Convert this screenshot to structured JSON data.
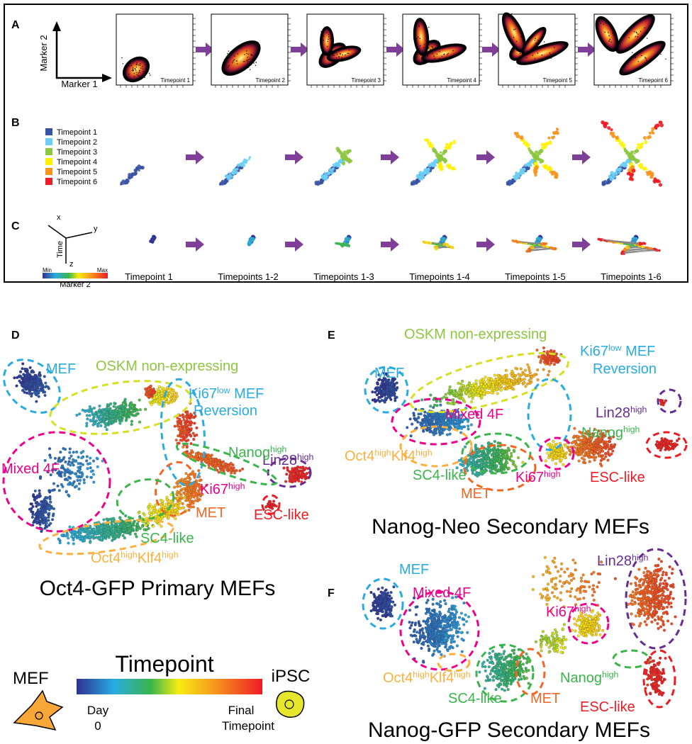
{
  "panel_a": {
    "letter": "A",
    "axis_y": "Marker 2",
    "axis_x": "Marker 1",
    "plots": [
      "Timepoint 1",
      "Timepoint 2",
      "Timepoint 3",
      "Timepoint 4",
      "Timepoint 5",
      "Timepoint 6"
    ]
  },
  "panel_b": {
    "letter": "B",
    "legend": [
      {
        "label": "Timepoint 1",
        "color": "#3953a4"
      },
      {
        "label": "Timepoint 2",
        "color": "#6dcff6"
      },
      {
        "label": "Timepoint 3",
        "color": "#8dc63f"
      },
      {
        "label": "Timepoint 4",
        "color": "#fff200"
      },
      {
        "label": "Timepoint 5",
        "color": "#f7941d"
      },
      {
        "label": "Timepoint 6",
        "color": "#ed1c24"
      }
    ]
  },
  "panel_c": {
    "letter": "C",
    "axes": [
      "x",
      "y",
      "Time",
      "z"
    ],
    "colorbar": {
      "min": "Min",
      "max": "Max",
      "label": "Marker 2"
    },
    "timepoints": [
      "Timepoint 1",
      "Timepoints 1-2",
      "Timepoints 1-3",
      "Timepoints 1-4",
      "Timepoints 1-5",
      "Timepoints 1-6"
    ]
  },
  "panel_d": {
    "letter": "D",
    "title": "Oct4-GFP Primary MEFs",
    "labels": [
      {
        "color": "#29abe2",
        "parts": [
          {
            "text": "MEF"
          }
        ]
      },
      {
        "color": "#8dc63f",
        "parts": [
          {
            "text": "OSKM non-expressing"
          }
        ]
      },
      {
        "color": "#29abe2",
        "parts": [
          {
            "text": "Ki67"
          },
          {
            "text": "low",
            "sup": true
          },
          {
            "text": " MEF"
          }
        ]
      },
      {
        "color": "#29abe2",
        "parts": [
          {
            "text": "Reversion"
          }
        ]
      },
      {
        "color": "#662d91",
        "parts": [
          {
            "text": "Lin28"
          },
          {
            "text": "high",
            "sup": true
          }
        ]
      },
      {
        "color": "#ec008c",
        "parts": [
          {
            "text": "Mixed 4F"
          }
        ]
      },
      {
        "color": "#39b54a",
        "parts": [
          {
            "text": "Nanog"
          },
          {
            "text": "high",
            "sup": true
          }
        ]
      },
      {
        "color": "#ec008c",
        "parts": [
          {
            "text": "Ki67"
          },
          {
            "text": "high",
            "sup": true
          }
        ]
      },
      {
        "color": "#f26522",
        "parts": [
          {
            "text": "MET"
          }
        ]
      },
      {
        "color": "#ed1c24",
        "parts": [
          {
            "text": "ESC-like"
          }
        ]
      },
      {
        "color": "#39b54a",
        "parts": [
          {
            "text": "SC4-like"
          }
        ]
      },
      {
        "color": "#fbb040",
        "parts": [
          {
            "text": "Oct4"
          },
          {
            "text": "high",
            "sup": true
          },
          {
            "text": "Klf4"
          },
          {
            "text": "high",
            "sup": true
          }
        ]
      }
    ]
  },
  "panel_e": {
    "letter": "E",
    "title": "Nanog-Neo Secondary MEFs",
    "labels": [
      {
        "color": "#8dc63f",
        "parts": [
          {
            "text": "OSKM non-expressing"
          }
        ]
      },
      {
        "color": "#29abe2",
        "parts": [
          {
            "text": "Ki67"
          },
          {
            "text": "low",
            "sup": true
          },
          {
            "text": " MEF"
          }
        ]
      },
      {
        "color": "#29abe2",
        "parts": [
          {
            "text": "Reversion"
          }
        ]
      },
      {
        "color": "#29abe2",
        "parts": [
          {
            "text": "MEF"
          }
        ]
      },
      {
        "color": "#662d91",
        "parts": [
          {
            "text": "Lin28"
          },
          {
            "text": "high",
            "sup": true
          }
        ]
      },
      {
        "color": "#ec008c",
        "parts": [
          {
            "text": "Mixed 4F"
          }
        ]
      },
      {
        "color": "#39b54a",
        "parts": [
          {
            "text": "Nanog"
          },
          {
            "text": "high",
            "sup": true
          }
        ]
      },
      {
        "color": "#fbb040",
        "parts": [
          {
            "text": "Oct4"
          },
          {
            "text": "high",
            "sup": true
          },
          {
            "text": "Klf4"
          },
          {
            "text": "high",
            "sup": true
          }
        ]
      },
      {
        "color": "#39b54a",
        "parts": [
          {
            "text": "SC4-like"
          }
        ]
      },
      {
        "color": "#ec008c",
        "parts": [
          {
            "text": "Ki67"
          },
          {
            "text": "high",
            "sup": true
          }
        ]
      },
      {
        "color": "#ed1c24",
        "parts": [
          {
            "text": "ESC-like"
          }
        ]
      },
      {
        "color": "#f26522",
        "parts": [
          {
            "text": "MET"
          }
        ]
      }
    ]
  },
  "panel_f": {
    "letter": "F",
    "title": "Nanog-GFP Secondary MEFs",
    "labels": [
      {
        "color": "#29abe2",
        "parts": [
          {
            "text": "MEF"
          }
        ]
      },
      {
        "color": "#662d91",
        "parts": [
          {
            "text": "Lin28"
          },
          {
            "text": "high",
            "sup": true
          }
        ]
      },
      {
        "color": "#ec008c",
        "parts": [
          {
            "text": "Mixed 4F"
          }
        ]
      },
      {
        "color": "#ec008c",
        "parts": [
          {
            "text": "Ki67"
          },
          {
            "text": "high",
            "sup": true
          }
        ]
      },
      {
        "color": "#fbb040",
        "parts": [
          {
            "text": "Oct4"
          },
          {
            "text": "high",
            "sup": true
          },
          {
            "text": "Klf4"
          },
          {
            "text": "high",
            "sup": true
          }
        ]
      },
      {
        "color": "#39b54a",
        "parts": [
          {
            "text": "Nanog"
          },
          {
            "text": "high",
            "sup": true
          }
        ]
      },
      {
        "color": "#39b54a",
        "parts": [
          {
            "text": "SC4-like"
          }
        ]
      },
      {
        "color": "#f26522",
        "parts": [
          {
            "text": "MET"
          }
        ]
      },
      {
        "color": "#ed1c24",
        "parts": [
          {
            "text": "ESC-like"
          }
        ]
      }
    ]
  },
  "legend": {
    "left": "MEF",
    "title": "Timepoint",
    "right": "iPSC",
    "start": [
      "Day",
      "0"
    ],
    "end": [
      "Final",
      "Timepoint"
    ]
  }
}
